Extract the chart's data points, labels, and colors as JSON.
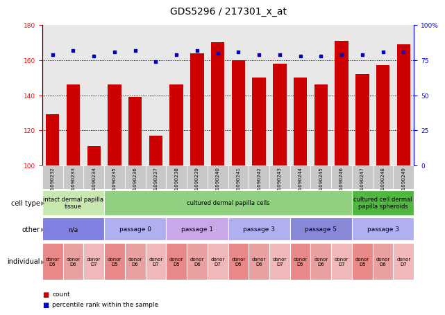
{
  "title": "GDS5296 / 217301_x_at",
  "samples": [
    "GSM1090232",
    "GSM1090233",
    "GSM1090234",
    "GSM1090235",
    "GSM1090236",
    "GSM1090237",
    "GSM1090238",
    "GSM1090239",
    "GSM1090240",
    "GSM1090241",
    "GSM1090242",
    "GSM1090243",
    "GSM1090244",
    "GSM1090245",
    "GSM1090246",
    "GSM1090247",
    "GSM1090248",
    "GSM1090249"
  ],
  "counts": [
    129,
    146,
    111,
    146,
    139,
    117,
    146,
    164,
    170,
    160,
    150,
    158,
    150,
    146,
    171,
    152,
    157,
    169
  ],
  "percentiles": [
    79,
    82,
    78,
    81,
    82,
    74,
    79,
    82,
    80,
    81,
    79,
    79,
    78,
    78,
    79,
    79,
    81,
    81
  ],
  "ylim_left": [
    100,
    180
  ],
  "ylim_right": [
    0,
    100
  ],
  "yticks_left": [
    100,
    120,
    140,
    160,
    180
  ],
  "yticks_right": [
    0,
    25,
    50,
    75,
    100
  ],
  "ytick_labels_right": [
    "0",
    "25",
    "50",
    "75",
    "100%"
  ],
  "bar_color": "#cc0000",
  "dot_color": "#0000cc",
  "bg_color": "#ffffff",
  "plot_bg": "#e8e8e8",
  "sample_label_bg": "#c8c8c8",
  "cell_type_groups": [
    {
      "label": "intact dermal papilla\ntissue",
      "start": 0,
      "end": 3,
      "color": "#c8e8b0"
    },
    {
      "label": "cultured dermal papilla cells",
      "start": 3,
      "end": 15,
      "color": "#90d080"
    },
    {
      "label": "cultured cell dermal\npapilla spheroids",
      "start": 15,
      "end": 18,
      "color": "#50b840"
    }
  ],
  "other_groups": [
    {
      "label": "n/a",
      "start": 0,
      "end": 3,
      "color": "#8080e0"
    },
    {
      "label": "passage 0",
      "start": 3,
      "end": 6,
      "color": "#b0b0f0"
    },
    {
      "label": "passage 1",
      "start": 6,
      "end": 9,
      "color": "#c8a8e8"
    },
    {
      "label": "passage 3",
      "start": 9,
      "end": 12,
      "color": "#b0b0f0"
    },
    {
      "label": "passage 5",
      "start": 12,
      "end": 15,
      "color": "#8888d8"
    },
    {
      "label": "passage 3",
      "start": 15,
      "end": 18,
      "color": "#b0b0f0"
    }
  ],
  "individual_donors": [
    "donor\nD5",
    "donor\nD6",
    "donor\nD7",
    "donor\nD5",
    "donor\nD6",
    "donor\nD7",
    "donor\nD5",
    "donor\nD6",
    "donor\nD7",
    "donor\nD5",
    "donor\nD6",
    "donor\nD7",
    "donor\nD5",
    "donor\nD6",
    "donor\nD7",
    "donor\nD5",
    "donor\nD6",
    "donor\nD7"
  ],
  "indiv_colors_d5": "#e88888",
  "indiv_colors_d6": "#e8a0a0",
  "indiv_colors_d7": "#f0b8b8",
  "label_fontsize": 7,
  "tick_fontsize": 6.5,
  "title_fontsize": 10
}
